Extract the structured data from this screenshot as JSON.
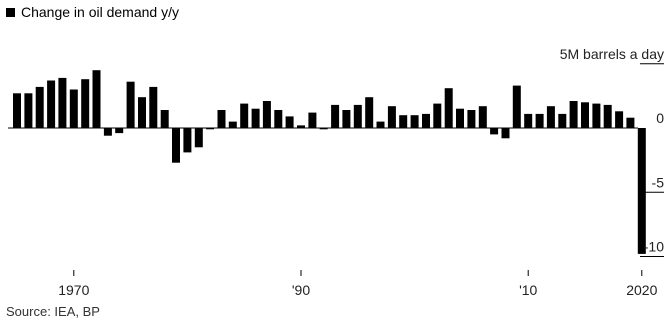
{
  "legend": {
    "label": "Change in oil demand y/y",
    "color": "#000000"
  },
  "source": "Source: IEA, BP",
  "chart_data": {
    "type": "bar",
    "unit_label": "5M barrels a day",
    "years": [
      1965,
      1966,
      1967,
      1968,
      1969,
      1970,
      1971,
      1972,
      1973,
      1974,
      1975,
      1976,
      1977,
      1978,
      1979,
      1980,
      1981,
      1982,
      1983,
      1984,
      1985,
      1986,
      1987,
      1988,
      1989,
      1990,
      1991,
      1992,
      1993,
      1994,
      1995,
      1996,
      1997,
      1998,
      1999,
      2000,
      2001,
      2002,
      2003,
      2004,
      2005,
      2006,
      2007,
      2008,
      2009,
      2010,
      2011,
      2012,
      2013,
      2014,
      2015,
      2016,
      2017,
      2018,
      2019,
      2020
    ],
    "values": [
      2.7,
      2.7,
      3.2,
      3.7,
      3.9,
      3.0,
      3.8,
      4.5,
      -0.6,
      -0.4,
      3.6,
      2.4,
      3.2,
      1.4,
      -2.7,
      -1.9,
      -1.5,
      -0.1,
      1.4,
      0.5,
      1.9,
      1.5,
      2.1,
      1.4,
      0.9,
      0.2,
      1.2,
      -0.1,
      1.8,
      1.4,
      1.8,
      2.4,
      0.5,
      1.7,
      1.0,
      1.0,
      1.1,
      1.9,
      3.1,
      1.5,
      1.4,
      1.7,
      -0.5,
      -0.8,
      3.3,
      1.1,
      1.1,
      1.7,
      1.1,
      2.1,
      2.0,
      1.9,
      1.8,
      1.3,
      0.8,
      -9.8
    ],
    "ylim": [
      -10.5,
      5.2
    ],
    "yticks": [
      {
        "value": 5,
        "label": "5M barrels a day"
      },
      {
        "value": 0,
        "label": "0"
      },
      {
        "value": -5,
        "label": "-5"
      },
      {
        "value": -10,
        "label": "-10"
      }
    ],
    "xticks": [
      {
        "year": 1970,
        "label": "1970"
      },
      {
        "year": 1990,
        "label": "'90"
      },
      {
        "year": 2010,
        "label": "'10"
      },
      {
        "year": 2020,
        "label": "2020"
      }
    ],
    "bar_color": "#000000",
    "grid": false
  }
}
